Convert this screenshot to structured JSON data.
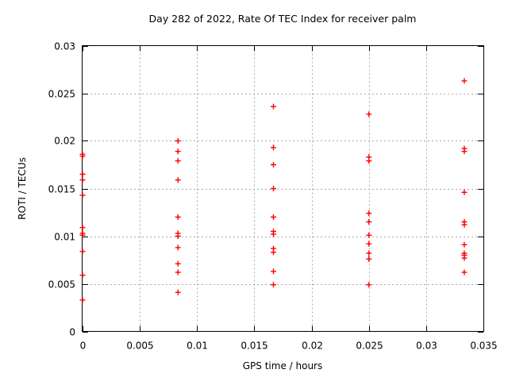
{
  "chart_data": {
    "type": "scatter",
    "title": "Day 282 of 2022, Rate Of TEC Index for receiver palm",
    "xlabel": "GPS time / hours",
    "ylabel": "ROTI / TECUs",
    "xlim": [
      0,
      0.035
    ],
    "ylim": [
      0,
      0.03
    ],
    "xtick_values": [
      0,
      0.005,
      0.01,
      0.015,
      0.02,
      0.025,
      0.03,
      0.035
    ],
    "xtick_labels": [
      "0",
      "0.005",
      "0.01",
      "0.015",
      "0.02",
      "0.025",
      "0.03",
      "0.035"
    ],
    "ytick_values": [
      0,
      0.005,
      0.01,
      0.015,
      0.02,
      0.025,
      0.03
    ],
    "ytick_labels": [
      "0",
      "0.005",
      "0.01",
      "0.015",
      "0.02",
      "0.025",
      "0.03"
    ],
    "grid": true,
    "legend_position": "none",
    "marker": {
      "shape": "plus",
      "color": "#ff0000",
      "size": 7
    },
    "grid_color": "#a8a8a8",
    "border_color": "#000000",
    "series": [
      {
        "name": "ROTI",
        "points": [
          [
            0,
            0.0186
          ],
          [
            0,
            0.0184
          ],
          [
            0,
            0.0165
          ],
          [
            0,
            0.0159
          ],
          [
            0,
            0.0143
          ],
          [
            0,
            0.0109
          ],
          [
            0,
            0.0103
          ],
          [
            0,
            0.0101
          ],
          [
            0,
            0.0084
          ],
          [
            0,
            0.0059
          ],
          [
            0,
            0.0033
          ],
          [
            0.008333,
            0.02
          ],
          [
            0.008333,
            0.0189
          ],
          [
            0.008333,
            0.0179
          ],
          [
            0.008333,
            0.0159
          ],
          [
            0.008333,
            0.012
          ],
          [
            0.008333,
            0.0103
          ],
          [
            0.008333,
            0.01
          ],
          [
            0.008333,
            0.0088
          ],
          [
            0.008333,
            0.0071
          ],
          [
            0.008333,
            0.0062
          ],
          [
            0.008333,
            0.0041
          ],
          [
            0.016667,
            0.0236
          ],
          [
            0.016667,
            0.0193
          ],
          [
            0.016667,
            0.0175
          ],
          [
            0.016667,
            0.015
          ],
          [
            0.016667,
            0.012
          ],
          [
            0.016667,
            0.0105
          ],
          [
            0.016667,
            0.0102
          ],
          [
            0.016667,
            0.0087
          ],
          [
            0.016667,
            0.0083
          ],
          [
            0.016667,
            0.0063
          ],
          [
            0.016667,
            0.0049
          ],
          [
            0.025,
            0.0228
          ],
          [
            0.025,
            0.0183
          ],
          [
            0.025,
            0.0179
          ],
          [
            0.025,
            0.0124
          ],
          [
            0.025,
            0.0115
          ],
          [
            0.025,
            0.0101
          ],
          [
            0.025,
            0.0092
          ],
          [
            0.025,
            0.0082
          ],
          [
            0.025,
            0.0076
          ],
          [
            0.025,
            0.0049
          ],
          [
            0.033333,
            0.0263
          ],
          [
            0.033333,
            0.0192
          ],
          [
            0.033333,
            0.0189
          ],
          [
            0.033333,
            0.0146
          ],
          [
            0.033333,
            0.0115
          ],
          [
            0.033333,
            0.0112
          ],
          [
            0.033333,
            0.0091
          ],
          [
            0.033333,
            0.0082
          ],
          [
            0.033333,
            0.008
          ],
          [
            0.033333,
            0.0077
          ],
          [
            0.033333,
            0.0062
          ]
        ]
      }
    ]
  }
}
